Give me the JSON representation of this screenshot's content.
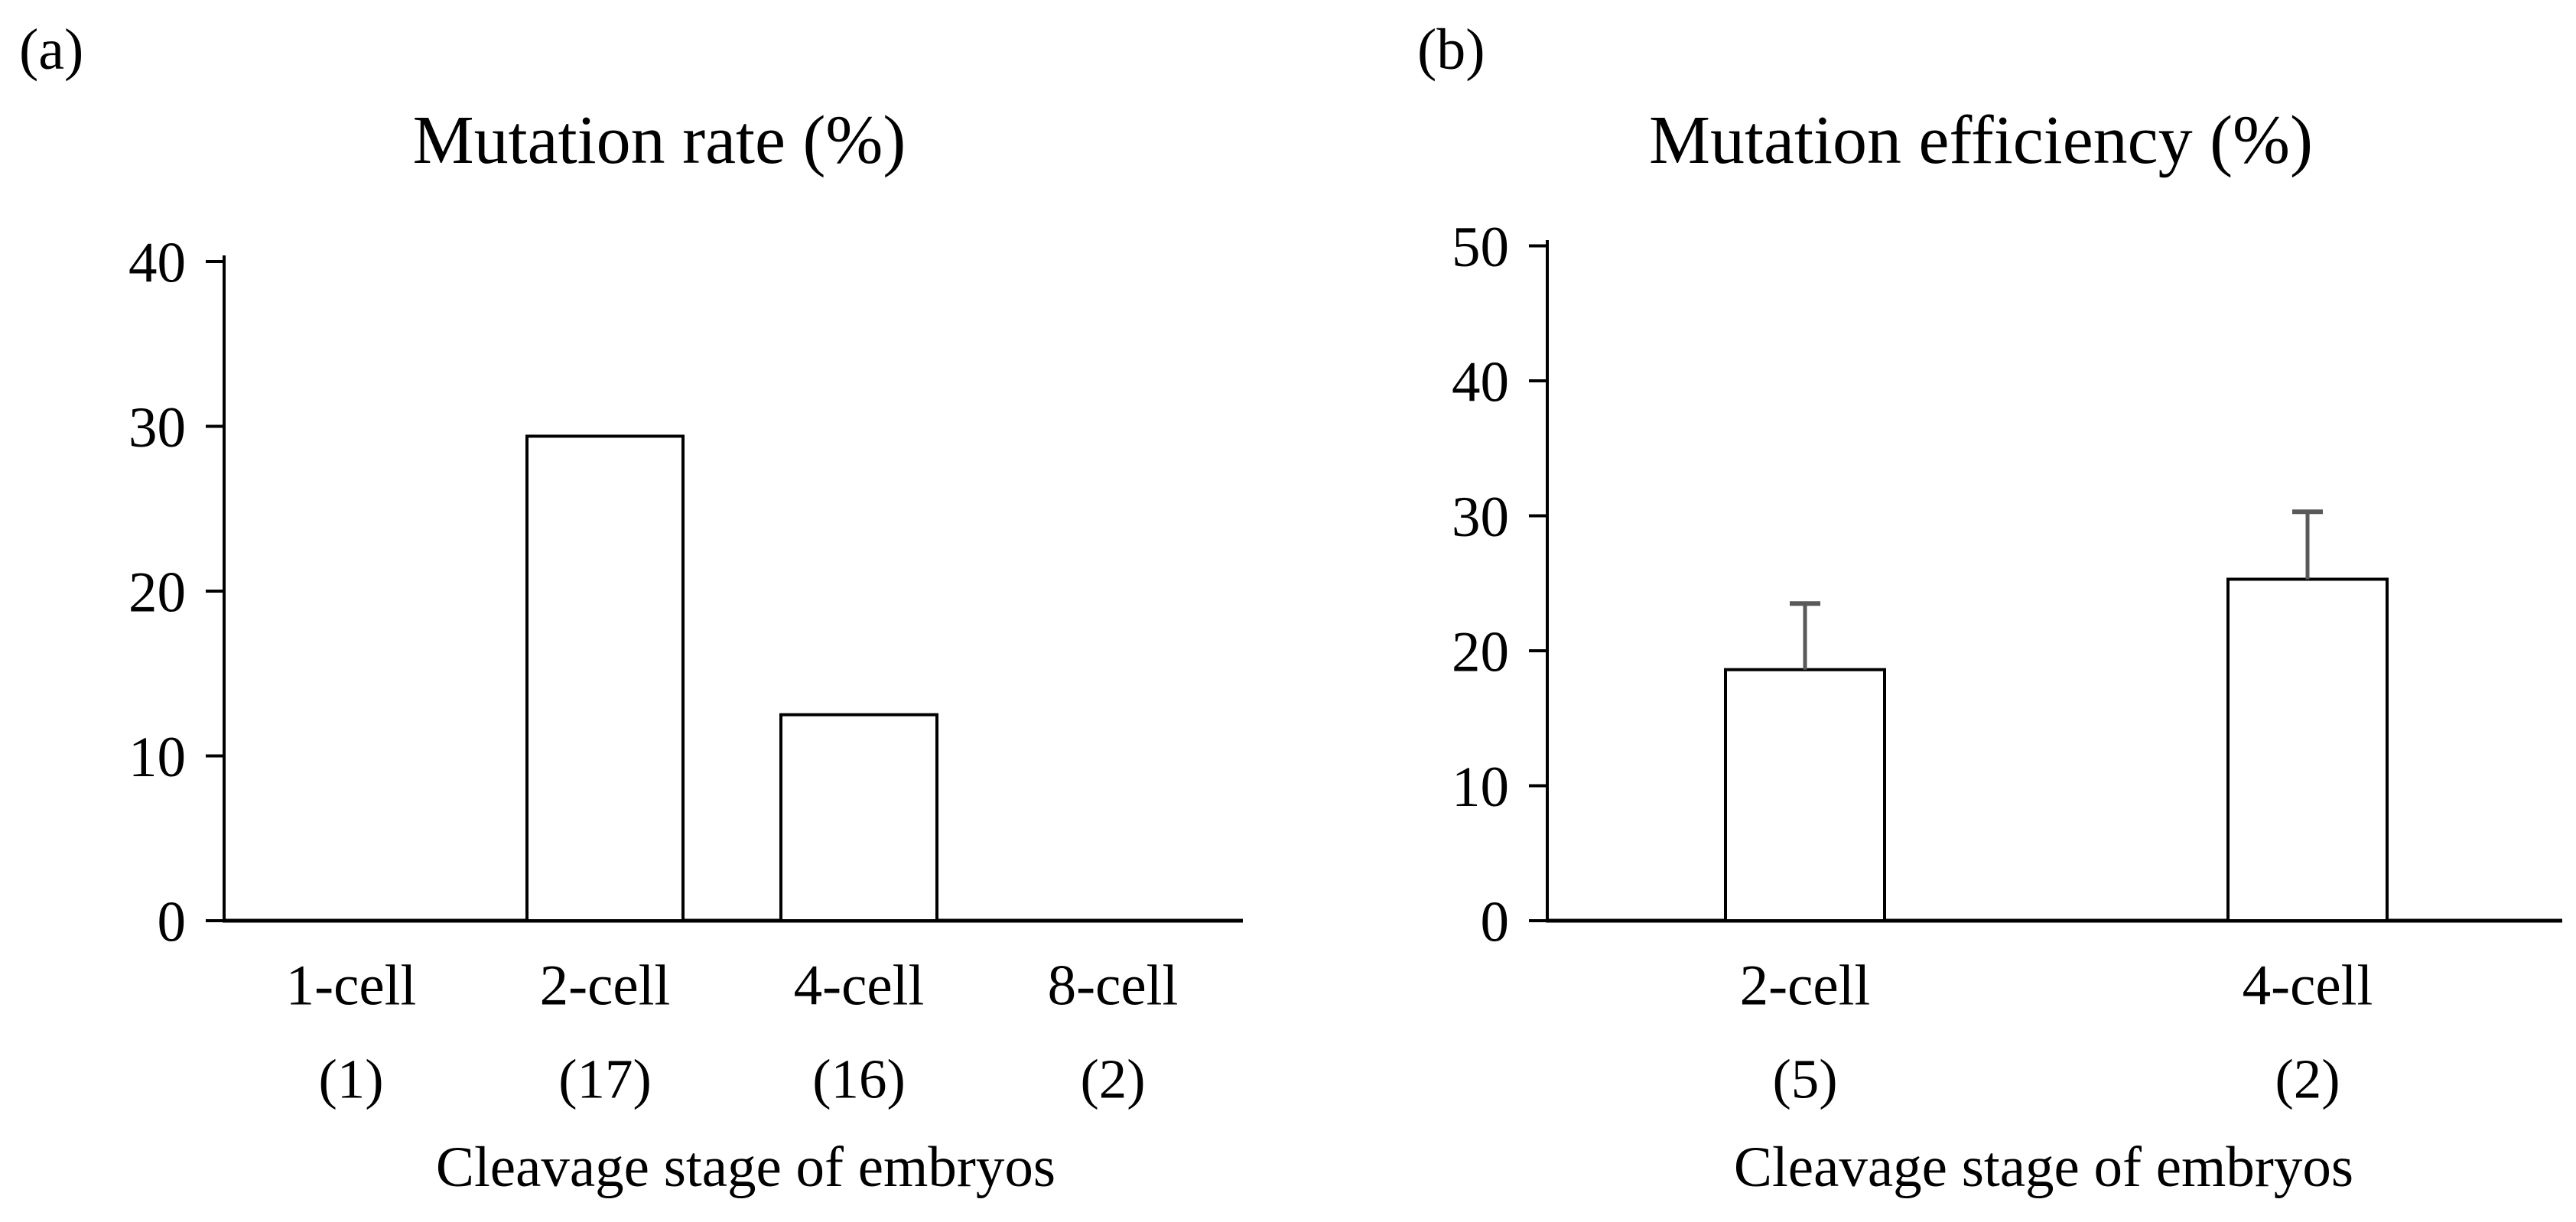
{
  "colors": {
    "background": "#ffffff",
    "text": "#000000",
    "axis": "#000000",
    "bar_fill": "#ffffff",
    "bar_stroke": "#000000",
    "error_bar": "#595959"
  },
  "chart_data": [
    {
      "type": "bar",
      "panel_label": "(a)",
      "title": "Mutation rate (%)",
      "xlabel": "Cleavage stage of embryos",
      "categories": [
        "1-cell",
        "2-cell",
        "4-cell",
        "8-cell"
      ],
      "category_counts": [
        "(1)",
        "(17)",
        "(16)",
        "(2)"
      ],
      "values": [
        0,
        29.4,
        12.5,
        0
      ],
      "errors": [
        null,
        null,
        null,
        null
      ],
      "ylim": [
        0,
        40
      ],
      "yticks": [
        0,
        10,
        20,
        30,
        40
      ],
      "grid": false,
      "legend": null
    },
    {
      "type": "bar",
      "panel_label": "(b)",
      "title": "Mutation efficiency (%)",
      "xlabel": "Cleavage stage of embryos",
      "categories": [
        "2-cell",
        "4-cell"
      ],
      "category_counts": [
        "(5)",
        "(2)"
      ],
      "values": [
        18.6,
        25.3
      ],
      "errors": [
        4.9,
        5.0
      ],
      "ylim": [
        0,
        50
      ],
      "yticks": [
        0,
        10,
        20,
        30,
        40,
        50
      ],
      "grid": false,
      "legend": null
    }
  ]
}
